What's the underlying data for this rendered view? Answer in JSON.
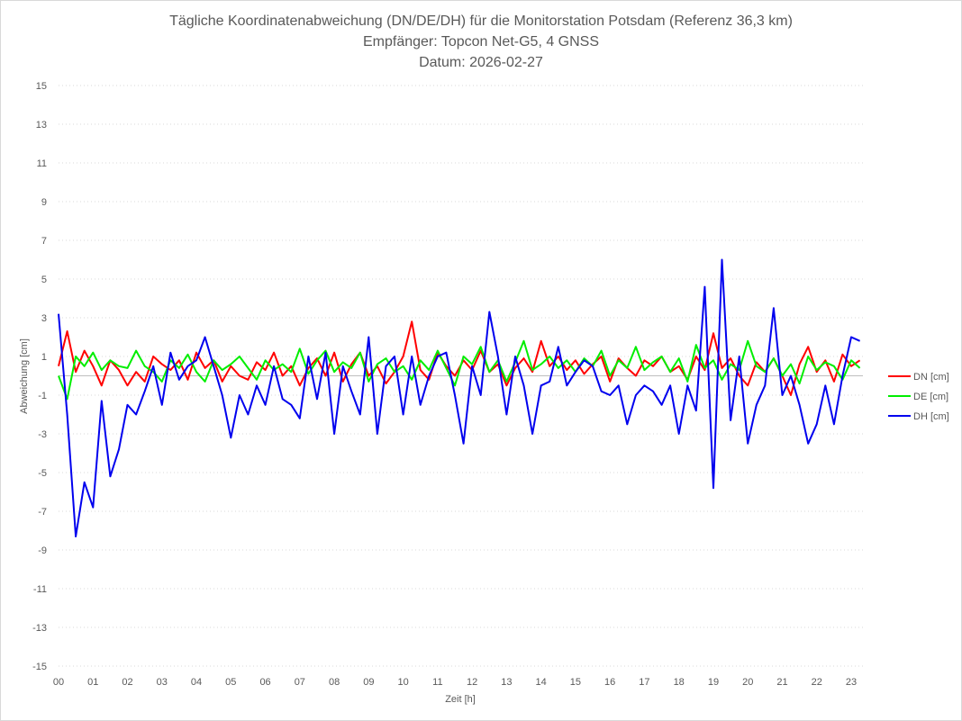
{
  "chart_data": {
    "type": "line",
    "title": "Tägliche Koordinatenabweichung (DN/DE/DH) für die Monitorstation Potsdam (Referenz 36,3 km)",
    "subtitle": "Empfänger: Topcon Net-G5, 4 GNSS",
    "subtitle2": "Datum: 2026-02-27",
    "xlabel": "Zeit [h]",
    "ylabel": "Abweichung [cm]",
    "xlim": [
      0,
      23.35
    ],
    "ylim": [
      -15,
      15
    ],
    "grid": true,
    "legend_position": "right",
    "x_start": 0,
    "x_step": 0.25,
    "x_ticks": [
      "00",
      "01",
      "02",
      "03",
      "04",
      "05",
      "06",
      "07",
      "08",
      "09",
      "10",
      "11",
      "12",
      "13",
      "14",
      "15",
      "16",
      "17",
      "18",
      "19",
      "20",
      "21",
      "22",
      "23"
    ],
    "y_ticks": [
      15,
      13,
      11,
      9,
      7,
      5,
      3,
      1,
      -1,
      -3,
      -5,
      -7,
      -9,
      -11,
      -13,
      -15
    ],
    "series": [
      {
        "name": "DN [cm]",
        "color": "#ff0000",
        "values": [
          0.5,
          2.3,
          0.2,
          1.3,
          0.5,
          -0.5,
          0.8,
          0.3,
          -0.5,
          0.2,
          -0.3,
          1.0,
          0.6,
          0.3,
          0.8,
          -0.2,
          1.2,
          0.4,
          0.8,
          -0.3,
          0.5,
          0.0,
          -0.2,
          0.7,
          0.3,
          1.2,
          0.0,
          0.5,
          -0.5,
          0.4,
          0.9,
          0.0,
          1.2,
          -0.3,
          0.6,
          1.2,
          0.0,
          0.5,
          -0.4,
          0.2,
          1.0,
          2.8,
          0.3,
          -0.2,
          1.2,
          0.5,
          0.0,
          0.8,
          0.3,
          1.3,
          0.2,
          0.6,
          -0.5,
          0.4,
          0.9,
          0.2,
          1.8,
          0.5,
          1.0,
          0.3,
          0.8,
          0.1,
          0.6,
          1.0,
          -0.3,
          0.9,
          0.4,
          0.0,
          0.8,
          0.5,
          1.0,
          0.2,
          0.5,
          -0.2,
          1.0,
          0.3,
          2.2,
          0.4,
          0.9,
          0.0,
          -0.5,
          0.7,
          0.2,
          0.9,
          0.0,
          -1.0,
          0.6,
          1.5,
          0.2,
          0.8,
          -0.3,
          1.1,
          0.5,
          0.8
        ]
      },
      {
        "name": "DE [cm]",
        "color": "#00ee00",
        "values": [
          0.0,
          -1.2,
          1.0,
          0.5,
          1.2,
          0.3,
          0.8,
          0.5,
          0.4,
          1.3,
          0.5,
          0.2,
          -0.3,
          0.8,
          0.4,
          1.1,
          0.2,
          -0.3,
          0.8,
          0.3,
          0.6,
          1.0,
          0.4,
          -0.2,
          0.8,
          0.3,
          0.6,
          0.2,
          1.4,
          0.1,
          0.8,
          1.3,
          0.2,
          0.7,
          0.4,
          1.2,
          -0.3,
          0.6,
          0.9,
          0.2,
          0.5,
          -0.2,
          0.8,
          0.3,
          1.3,
          0.4,
          -0.5,
          1.0,
          0.6,
          1.5,
          0.2,
          0.8,
          -0.3,
          0.7,
          1.8,
          0.3,
          0.6,
          1.0,
          0.4,
          0.8,
          0.2,
          0.9,
          0.5,
          1.3,
          0.0,
          0.8,
          0.4,
          1.5,
          0.3,
          0.7,
          1.0,
          0.2,
          0.9,
          -0.3,
          1.6,
          0.4,
          0.8,
          -0.2,
          0.6,
          0.3,
          1.8,
          0.5,
          0.2,
          0.9,
          0.0,
          0.6,
          -0.4,
          1.0,
          0.3,
          0.7,
          0.5,
          -0.2,
          0.8,
          0.4
        ]
      },
      {
        "name": "DH [cm]",
        "color": "#0000ee",
        "values": [
          3.2,
          -2.0,
          -8.3,
          -5.5,
          -6.8,
          -1.3,
          -5.2,
          -3.8,
          -1.5,
          -2.0,
          -0.8,
          0.5,
          -1.5,
          1.2,
          -0.2,
          0.5,
          0.8,
          2.0,
          0.5,
          -1.0,
          -3.2,
          -1.0,
          -2.0,
          -0.5,
          -1.5,
          0.5,
          -1.2,
          -1.5,
          -2.2,
          1.0,
          -1.2,
          1.2,
          -3.0,
          0.5,
          -0.8,
          -2.0,
          2.0,
          -3.0,
          0.5,
          1.0,
          -2.0,
          1.0,
          -1.5,
          0.0,
          1.0,
          1.2,
          -1.0,
          -3.5,
          0.5,
          -1.0,
          3.3,
          1.0,
          -2.0,
          1.0,
          -0.5,
          -3.0,
          -0.5,
          -0.3,
          1.5,
          -0.5,
          0.2,
          0.8,
          0.5,
          -0.8,
          -1.0,
          -0.5,
          -2.5,
          -1.0,
          -0.5,
          -0.8,
          -1.5,
          -0.5,
          -3.0,
          -0.5,
          -1.8,
          4.6,
          -5.8,
          6.0,
          -2.3,
          1.0,
          -3.5,
          -1.5,
          -0.5,
          3.5,
          -1.0,
          0.0,
          -1.5,
          -3.5,
          -2.5,
          -0.5,
          -2.5,
          0.0,
          2.0,
          1.8
        ]
      }
    ]
  }
}
